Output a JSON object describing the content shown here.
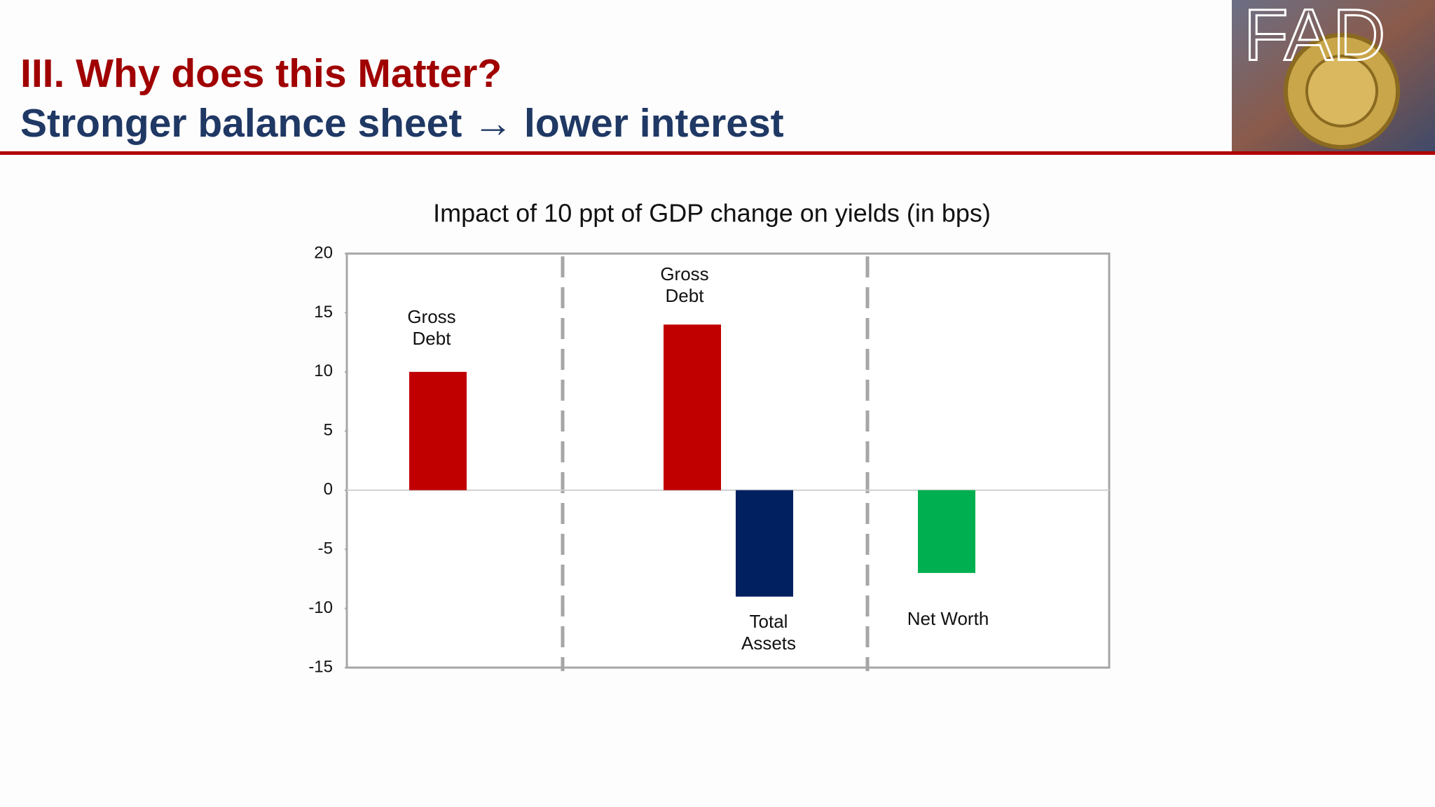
{
  "header": {
    "title": "III. Why does this Matter?",
    "subtitle": "Stronger balance sheet → lower interest",
    "logo_text": "FAD"
  },
  "chart_data": {
    "type": "bar",
    "title": "Impact of 10 ppt of GDP change on yields (in bps)",
    "categories": [
      "Gross\nDebt",
      "Gross\nDebt",
      "Total\nAssets",
      "Net Worth"
    ],
    "values": [
      10,
      14,
      -9,
      -7
    ],
    "colors": [
      "#c00000",
      "#c00000",
      "#002060",
      "#00b050"
    ],
    "ylim": [
      -15,
      20
    ],
    "yticks": [
      -15,
      -10,
      -5,
      0,
      5,
      10,
      15,
      20
    ]
  }
}
